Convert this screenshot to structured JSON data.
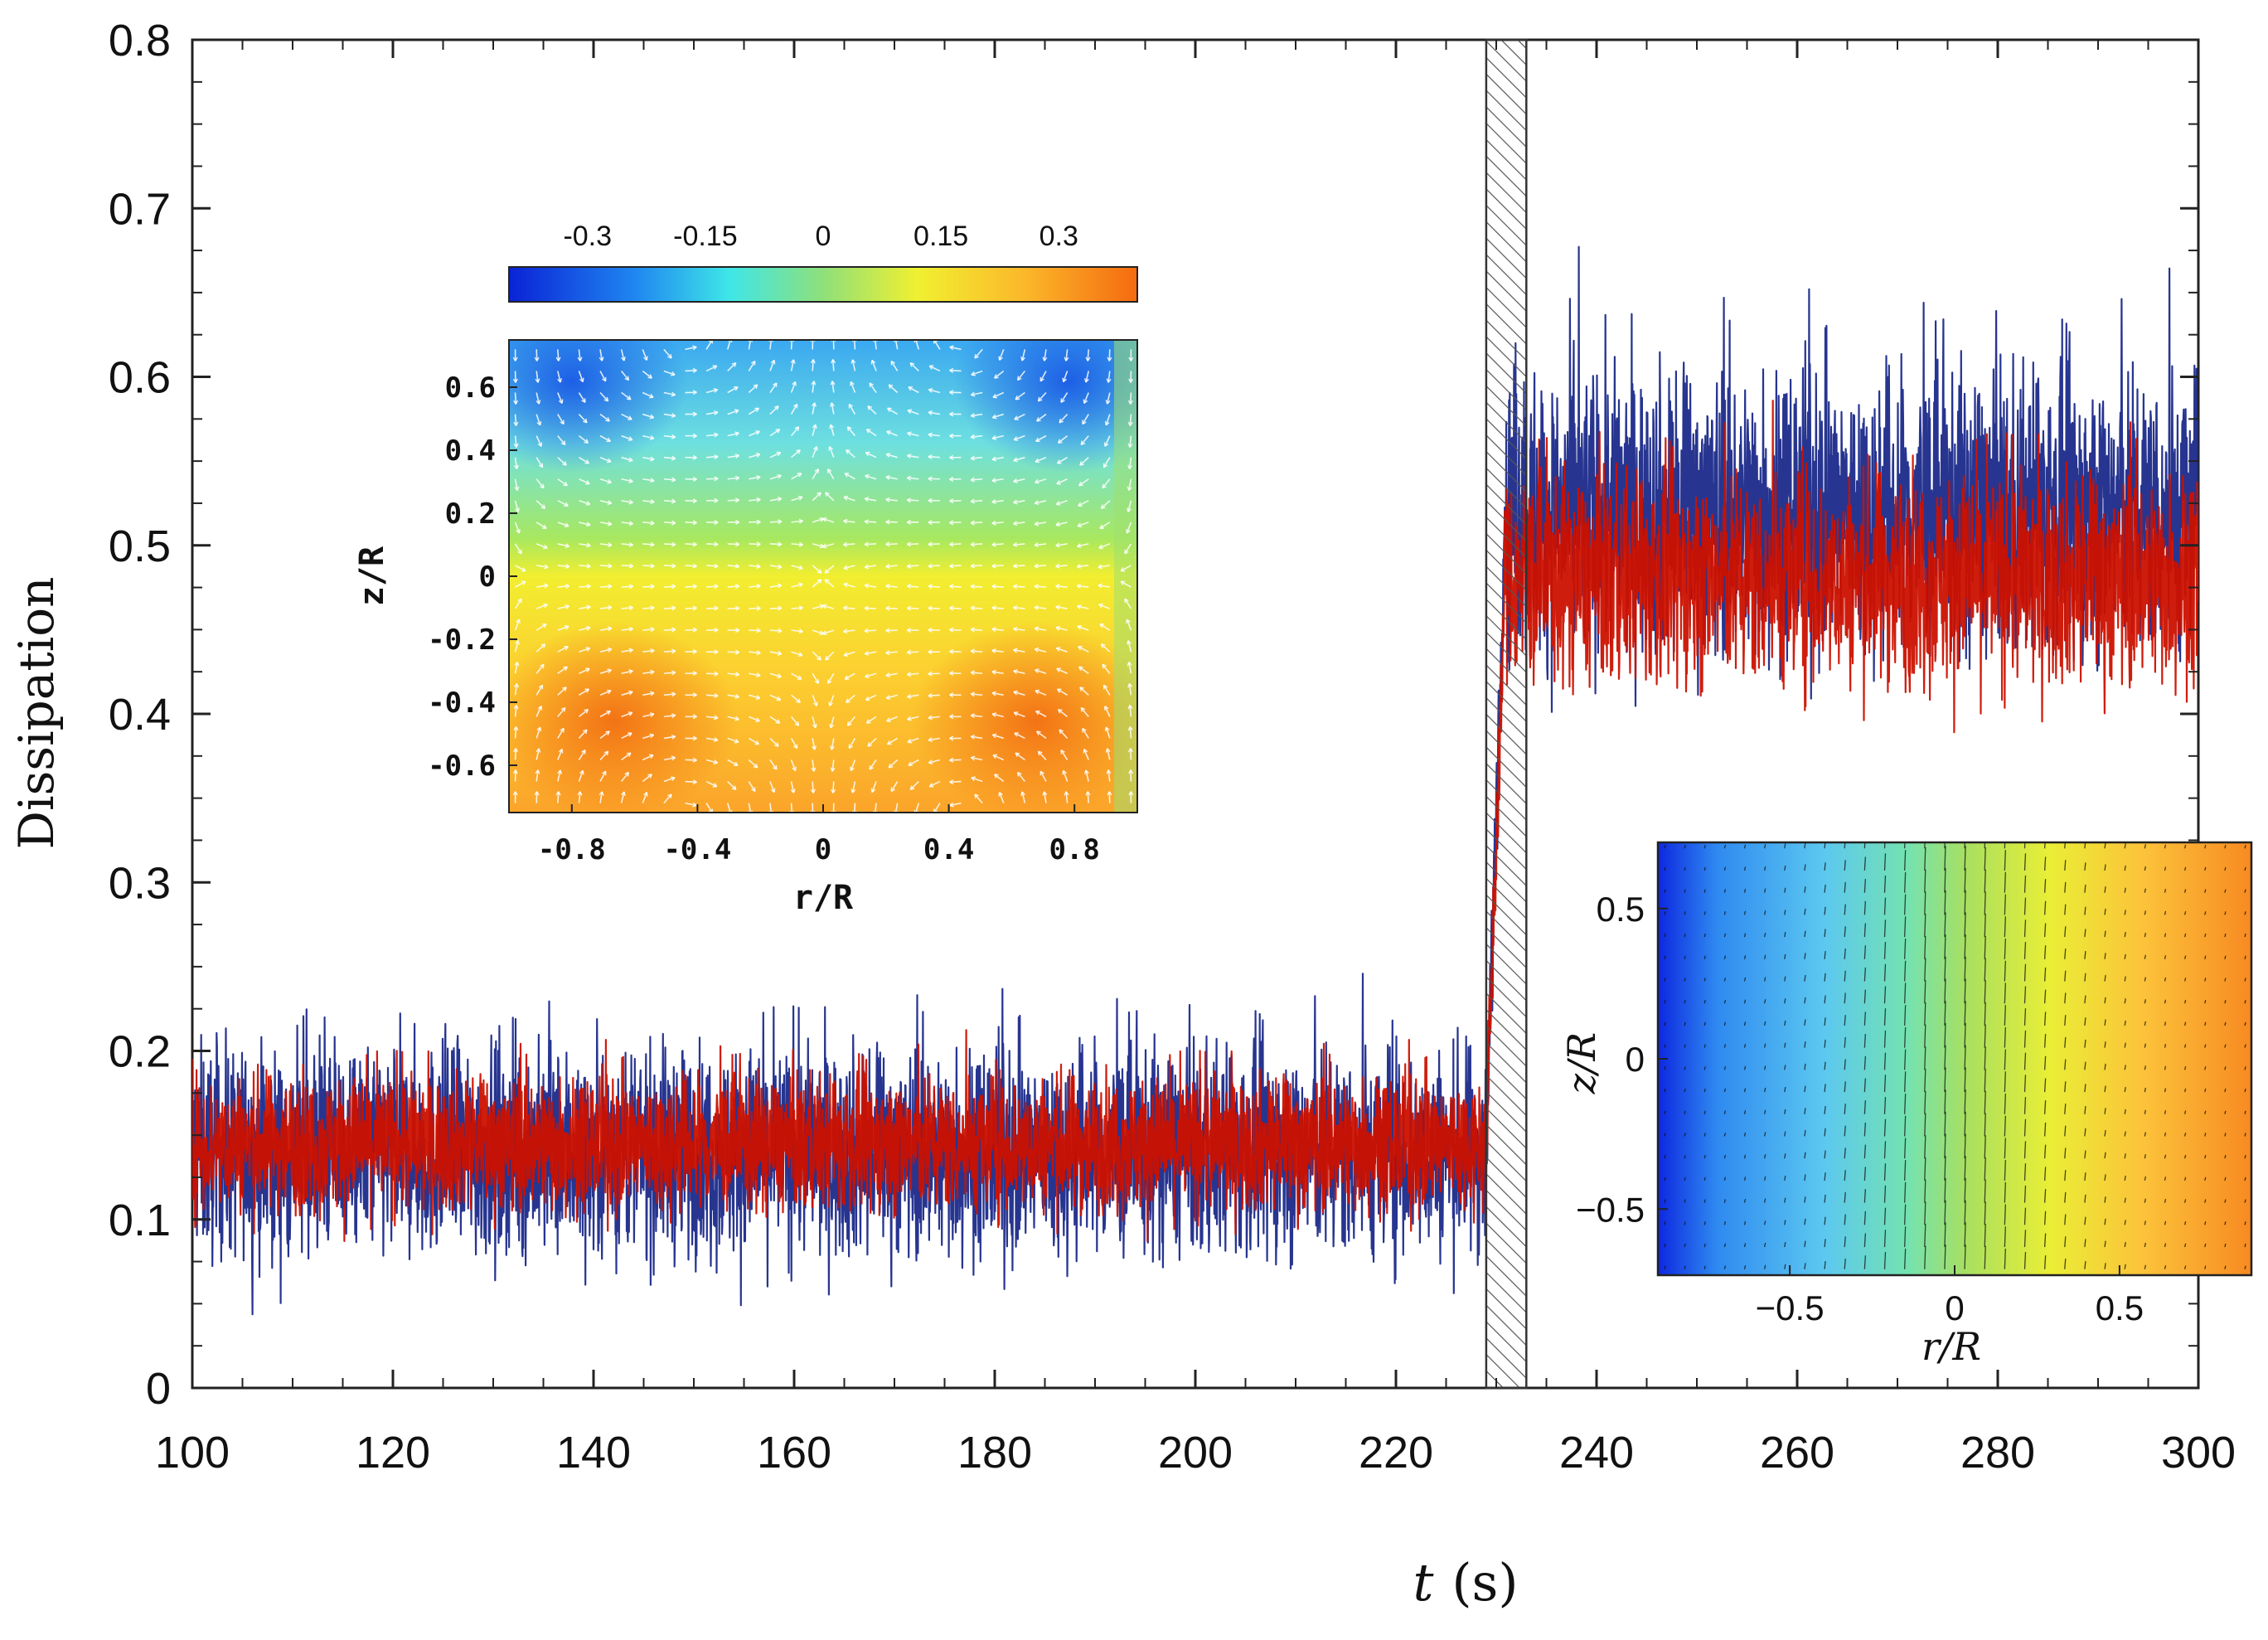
{
  "chart_data": [
    {
      "type": "line",
      "title": "",
      "xlabel": "t",
      "xlabel_unit": "(s)",
      "ylabel": "Dissipation",
      "xlim": [
        100,
        300
      ],
      "ylim": [
        0,
        0.8
      ],
      "xticks": [
        "100",
        "120",
        "140",
        "160",
        "180",
        "200",
        "220",
        "240",
        "260",
        "280",
        "300"
      ],
      "yticks": [
        "0",
        "0.1",
        "0.2",
        "0.3",
        "0.4",
        "0.5",
        "0.6",
        "0.7",
        "0.8"
      ],
      "transition_band_x": [
        229,
        233
      ],
      "series": [
        {
          "name": "blue",
          "color": "#1b2a8a",
          "segments": [
            {
              "x": [
                100,
                229
              ],
              "mean": 0.14,
              "spread": 0.055
            },
            {
              "x": [
                229,
                231
              ],
              "mean": [
                0.14,
                0.55
              ]
            },
            {
              "x": [
                231,
                300
              ],
              "mean": 0.52,
              "spread": 0.075
            }
          ]
        },
        {
          "name": "red",
          "color": "#cc1100",
          "segments": [
            {
              "x": [
                100,
                229
              ],
              "mean": 0.145,
              "spread": 0.035
            },
            {
              "x": [
                229,
                231
              ],
              "mean": [
                0.145,
                0.5
              ]
            },
            {
              "x": [
                231,
                300
              ],
              "mean": 0.48,
              "spread": 0.055
            }
          ]
        }
      ]
    },
    {
      "type": "heatmap",
      "name": "inset-left",
      "xlabel": "r/R",
      "ylabel": "z/R",
      "xticks": [
        "-0.8",
        "-0.4",
        "0",
        "0.4",
        "0.8"
      ],
      "yticks": [
        "0.6",
        "0.4",
        "0.2",
        "0",
        "-0.2",
        "-0.4",
        "-0.6"
      ],
      "xlim": [
        -1,
        1
      ],
      "ylim": [
        -0.75,
        0.75
      ],
      "colorbar_ticks": [
        "-0.3",
        "-0.15",
        "0",
        "0.15",
        "0.3"
      ],
      "colorbar_range": [
        -0.4,
        0.4
      ],
      "arrow_color": "#ffffff"
    },
    {
      "type": "heatmap",
      "name": "inset-right",
      "xlabel": "r/R",
      "ylabel": "z/R",
      "xticks": [
        "−0.5",
        "0",
        "0.5"
      ],
      "yticks": [
        "0.5",
        "0",
        "−0.5"
      ],
      "xlim": [
        -0.9,
        0.9
      ],
      "ylim": [
        -0.72,
        0.72
      ],
      "arrow_color": "#111111"
    }
  ]
}
